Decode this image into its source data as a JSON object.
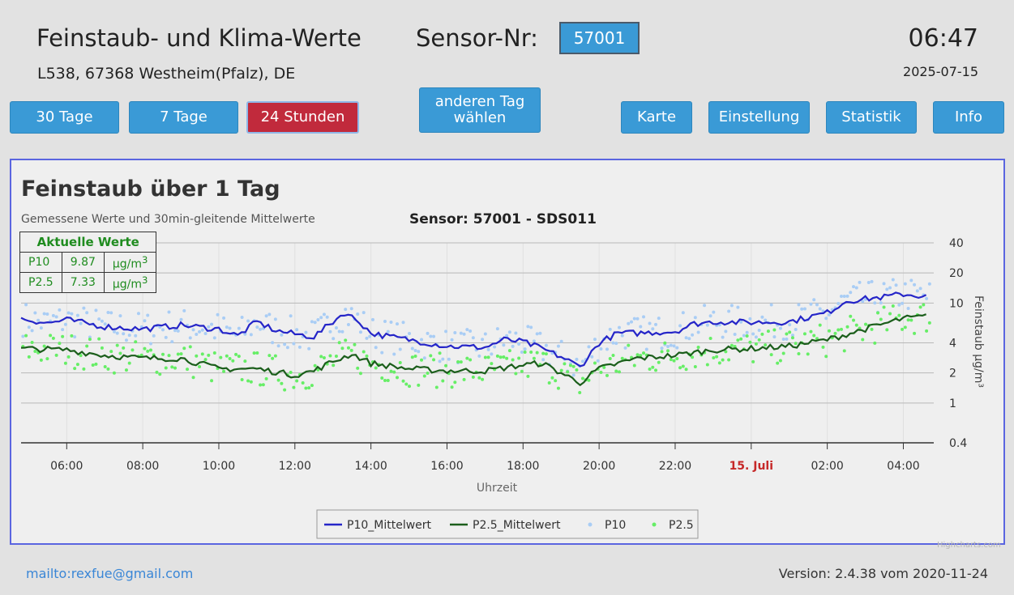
{
  "header": {
    "title": "Feinstaub- und Klima-Werte",
    "address": "L538, 67368 Westheim(Pfalz), DE",
    "sensor_label": "Sensor-Nr:",
    "sensor_value": "57001",
    "time": "06:47",
    "date": "2025-07-15"
  },
  "buttons": {
    "days30": "30 Tage",
    "days7": "7 Tage",
    "hours24": "24 Stunden",
    "other_day_line1": "anderen Tag",
    "other_day_line2": "wählen",
    "map": "Karte",
    "settings": "Einstellung",
    "stats": "Statistik",
    "info": "Info"
  },
  "chart_header": {
    "title": "Feinstaub über 1 Tag",
    "subtitle": "Gemessene Werte und 30min-gleitende Mittelwerte",
    "sensor": "Sensor: 57001 - SDS011"
  },
  "current": {
    "heading": "Aktuelle Werte",
    "rows": [
      {
        "name": "P10",
        "value": "9.87",
        "unit": "µg/m",
        "exp": "3"
      },
      {
        "name": "P2.5",
        "value": "7.33",
        "unit": "µg/m",
        "exp": "3"
      }
    ]
  },
  "chart_data": {
    "type": "line",
    "xlabel": "Uhrzeit",
    "ylabel": "Feinstaub µg/m³",
    "y_scale": "log",
    "ylim": [
      0.4,
      40
    ],
    "y_ticks": [
      "0.4",
      "1",
      "2",
      "4",
      "10",
      "20",
      "40"
    ],
    "x_ticks": [
      "06:00",
      "08:00",
      "10:00",
      "12:00",
      "14:00",
      "16:00",
      "18:00",
      "20:00",
      "22:00",
      "15. Juli",
      "02:00",
      "04:00"
    ],
    "x_tick_hours": [
      6,
      8,
      10,
      12,
      14,
      16,
      18,
      20,
      22,
      24,
      26,
      28
    ],
    "x_range_hours": [
      4.8,
      28.8
    ],
    "highlight_tick": "15. Juli",
    "highlight_color": "#c62828",
    "legend_position": "bottom-center",
    "series": [
      {
        "name": "P10_Mittelwert",
        "kind": "line",
        "color": "#2525c8",
        "x": [
          4.8,
          5.5,
          6,
          7,
          8,
          9,
          10,
          10.5,
          11,
          11.5,
          12,
          12.5,
          13,
          13.3,
          13.7,
          14,
          14.5,
          15,
          16,
          17,
          17.5,
          18,
          18.5,
          19,
          19.5,
          20,
          20.5,
          21,
          22,
          22.5,
          23,
          24,
          25,
          26,
          26.5,
          27,
          27.5,
          28,
          28.7
        ],
        "y": [
          7,
          6.3,
          6.8,
          5.8,
          5.5,
          6,
          5.5,
          4.7,
          6.5,
          5.3,
          4.9,
          4.6,
          6.5,
          8,
          6.5,
          5,
          4.6,
          4.3,
          3.7,
          3.6,
          4.3,
          4.1,
          3.5,
          2.9,
          2.3,
          4.0,
          5,
          5,
          5.2,
          6.2,
          6.5,
          6.4,
          6.5,
          8,
          10.5,
          11,
          11.5,
          12.3,
          11.5
        ]
      },
      {
        "name": "P2.5_Mittelwert",
        "kind": "line",
        "color": "#1b5e1b",
        "x": [
          4.8,
          6,
          7,
          8,
          9,
          10,
          11,
          12,
          12.5,
          13,
          13.5,
          14,
          15,
          16,
          17,
          18,
          18.5,
          19,
          19.5,
          20,
          21,
          22,
          23,
          24,
          25,
          26,
          27,
          28,
          28.7
        ],
        "y": [
          3.5,
          3.4,
          3,
          2.8,
          2.8,
          2.2,
          2.2,
          1.9,
          2.1,
          2.6,
          3.1,
          2.5,
          2.2,
          2.1,
          2.1,
          2.4,
          2.5,
          2,
          1.6,
          2.2,
          2.8,
          3,
          3.4,
          3.5,
          3.7,
          4.3,
          5.5,
          7,
          7.4
        ]
      },
      {
        "name": "P10",
        "kind": "scatter",
        "color": "#a9cdf5"
      },
      {
        "name": "P2.5",
        "kind": "scatter",
        "color": "#66ee66"
      }
    ]
  },
  "footer": {
    "mail": "mailto:rexfue@gmail.com",
    "version": "Version: 2.4.38 vom 2020-11-24",
    "credits": "Highcharts.com"
  }
}
